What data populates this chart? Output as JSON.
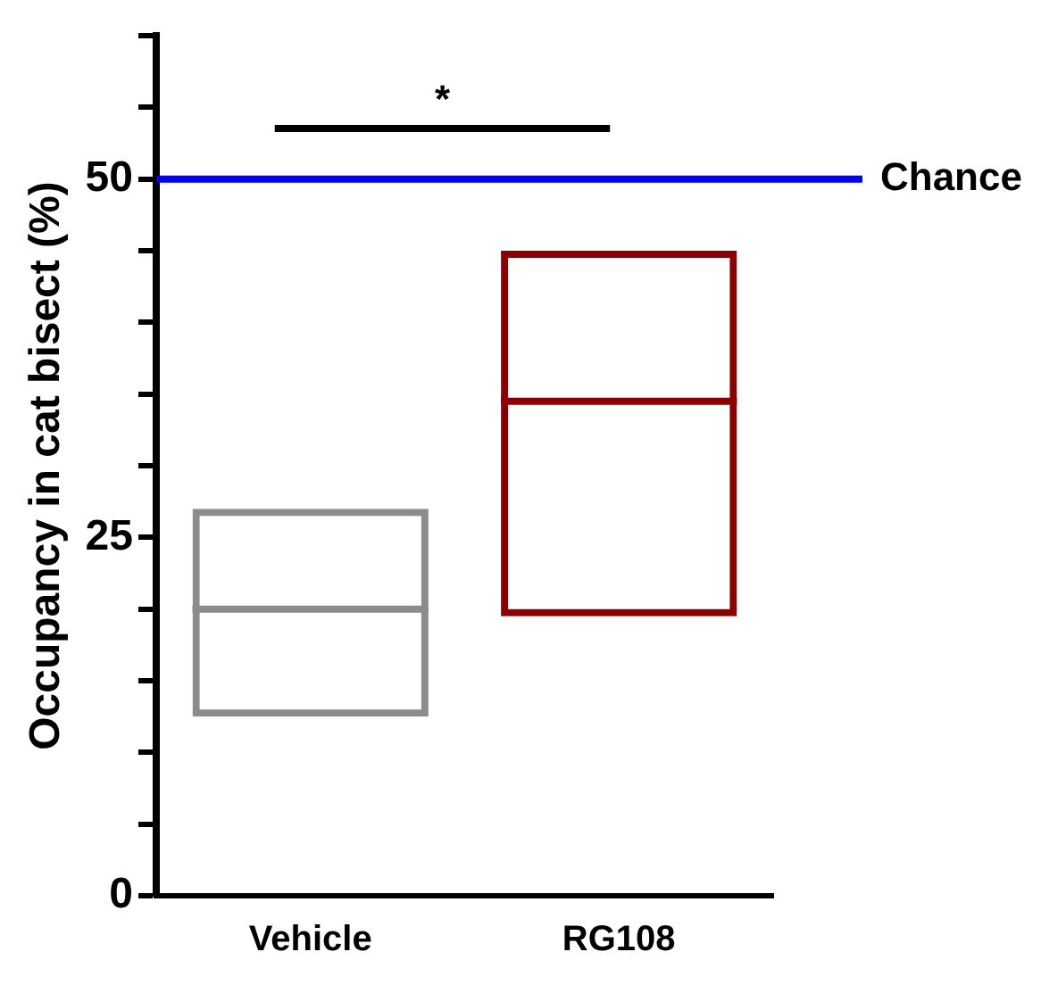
{
  "chart_data": {
    "type": "box",
    "ylabel": "Occupancy in cat bisect (%)",
    "categories": [
      "Vehicle",
      "RG108"
    ],
    "boxes": [
      {
        "low": 12.5,
        "q1": 12.5,
        "median": 20,
        "q3": 27,
        "high": 27
      },
      {
        "low": 19.5,
        "q1": 19.5,
        "median": 34.5,
        "q3": 45,
        "high": 45
      }
    ],
    "colors": [
      "#8c8c8c",
      "#8b0000"
    ],
    "ylim": [
      0,
      60
    ],
    "yticks": [
      0,
      {
        "value": 5,
        "label": null
      },
      {
        "value": 10,
        "label": null
      },
      {
        "value": 15,
        "label": null
      },
      {
        "value": 20,
        "label": null
      },
      25,
      {
        "value": 30,
        "label": null
      },
      {
        "value": 35,
        "label": null
      },
      {
        "value": 40,
        "label": null
      },
      {
        "value": 45,
        "label": null
      },
      50,
      {
        "value": 55,
        "label": null
      },
      {
        "value": 60,
        "label": null
      }
    ],
    "ref_lines": [
      {
        "axis": "y",
        "value": 50,
        "label": "Chance",
        "color": "#0000ff"
      }
    ],
    "annotations": [
      "*"
    ]
  }
}
